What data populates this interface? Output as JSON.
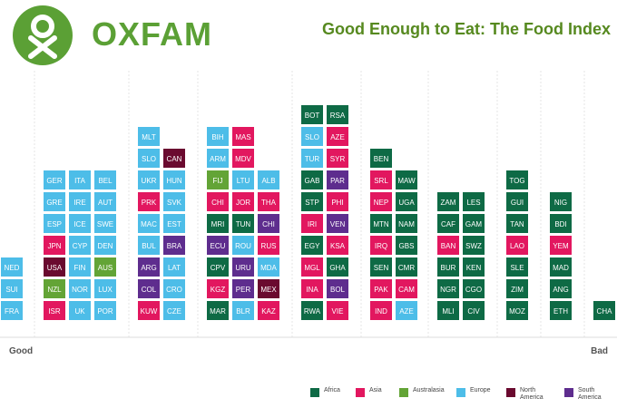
{
  "header": {
    "logo_text": "OXFAM",
    "title": "Good Enough to Eat: The Food Index"
  },
  "colors": {
    "Africa": "#0e6a45",
    "Asia": "#e2175f",
    "Australasia": "#63a436",
    "Europe": "#4dbde8",
    "North America": "#6a0a2f",
    "South America": "#5e2d8e"
  },
  "chart_data": {
    "type": "table",
    "axis_labels": {
      "left": "Good",
      "right": "Bad"
    },
    "legend": [
      "Africa",
      "Asia",
      "Australasia",
      "Europe",
      "North America",
      "South America"
    ],
    "columns": [
      [
        [
          "FRA",
          "Europe"
        ],
        [
          "SUI",
          "Europe"
        ],
        [
          "NED",
          "Europe"
        ]
      ],
      [
        [
          "ISR",
          "Asia"
        ],
        [
          "NZL",
          "Australasia"
        ],
        [
          "USA",
          "North America"
        ],
        [
          "JPN",
          "Asia"
        ],
        [
          "ESP",
          "Europe"
        ],
        [
          "GRE",
          "Europe"
        ],
        [
          "GER",
          "Europe"
        ]
      ],
      [
        [
          "UK",
          "Europe"
        ],
        [
          "NOR",
          "Europe"
        ],
        [
          "FIN",
          "Europe"
        ],
        [
          "CYP",
          "Europe"
        ],
        [
          "ICE",
          "Europe"
        ],
        [
          "IRE",
          "Europe"
        ],
        [
          "ITA",
          "Europe"
        ]
      ],
      [
        [
          "POR",
          "Europe"
        ],
        [
          "LUX",
          "Europe"
        ],
        [
          "AUS",
          "Australasia"
        ],
        [
          "DEN",
          "Europe"
        ],
        [
          "SWE",
          "Europe"
        ],
        [
          "AUT",
          "Europe"
        ],
        [
          "BEL",
          "Europe"
        ]
      ],
      [
        [
          "KUW",
          "Asia"
        ],
        [
          "COL",
          "South America"
        ],
        [
          "ARG",
          "South America"
        ],
        [
          "BUL",
          "Europe"
        ],
        [
          "MAC",
          "Europe"
        ],
        [
          "PRK",
          "Asia"
        ],
        [
          "UKR",
          "Europe"
        ],
        [
          "SLO",
          "Europe"
        ],
        [
          "MLT",
          "Europe"
        ]
      ],
      [
        [
          "CZE",
          "Europe"
        ],
        [
          "CRO",
          "Europe"
        ],
        [
          "LAT",
          "Europe"
        ],
        [
          "BRA",
          "South America"
        ],
        [
          "EST",
          "Europe"
        ],
        [
          "SVK",
          "Europe"
        ],
        [
          "HUN",
          "Europe"
        ],
        [
          "CAN",
          "North America"
        ]
      ],
      [
        [
          "MAR",
          "Africa"
        ],
        [
          "KGZ",
          "Asia"
        ],
        [
          "CPV",
          "Africa"
        ],
        [
          "ECU",
          "South America"
        ],
        [
          "MRI",
          "Africa"
        ],
        [
          "CHI",
          "Asia"
        ],
        [
          "FIJ",
          "Australasia"
        ],
        [
          "ARM",
          "Europe"
        ],
        [
          "BIH",
          "Europe"
        ]
      ],
      [
        [
          "BLR",
          "Europe"
        ],
        [
          "PER",
          "South America"
        ],
        [
          "URU",
          "South America"
        ],
        [
          "ROU",
          "Europe"
        ],
        [
          "TUN",
          "Africa"
        ],
        [
          "JOR",
          "Asia"
        ],
        [
          "LTU",
          "Europe"
        ],
        [
          "MDV",
          "Asia"
        ],
        [
          "MAS",
          "Asia"
        ]
      ],
      [
        [
          "KAZ",
          "Asia"
        ],
        [
          "MEX",
          "North America"
        ],
        [
          "MDA",
          "Europe"
        ],
        [
          "RUS",
          "Asia"
        ],
        [
          "CHI",
          "South America"
        ],
        [
          "THA",
          "Asia"
        ],
        [
          "ALB",
          "Europe"
        ]
      ],
      [
        [
          "RWA",
          "Africa"
        ],
        [
          "INA",
          "Asia"
        ],
        [
          "MGL",
          "Asia"
        ],
        [
          "EGY",
          "Africa"
        ],
        [
          "IRI",
          "Asia"
        ],
        [
          "STP",
          "Africa"
        ],
        [
          "GAB",
          "Africa"
        ],
        [
          "TUR",
          "Europe"
        ],
        [
          "SLO",
          "Europe"
        ],
        [
          "BOT",
          "Africa"
        ]
      ],
      [
        [
          "VIE",
          "Asia"
        ],
        [
          "BOL",
          "South America"
        ],
        [
          "GHA",
          "Africa"
        ],
        [
          "KSA",
          "Asia"
        ],
        [
          "VEN",
          "South America"
        ],
        [
          "PHI",
          "Asia"
        ],
        [
          "PAR",
          "South America"
        ],
        [
          "SYR",
          "Asia"
        ],
        [
          "AZE",
          "Asia"
        ],
        [
          "RSA",
          "Africa"
        ]
      ],
      [
        [
          "IND",
          "Asia"
        ],
        [
          "PAK",
          "Asia"
        ],
        [
          "SEN",
          "Africa"
        ],
        [
          "IRQ",
          "Asia"
        ],
        [
          "MTN",
          "Africa"
        ],
        [
          "NEP",
          "Asia"
        ],
        [
          "SRL",
          "Asia"
        ],
        [
          "BEN",
          "Africa"
        ]
      ],
      [
        [
          "AZE",
          "Europe"
        ],
        [
          "CAM",
          "Asia"
        ],
        [
          "CMR",
          "Africa"
        ],
        [
          "GBS",
          "Africa"
        ],
        [
          "NAM",
          "Africa"
        ],
        [
          "UGA",
          "Africa"
        ],
        [
          "MAW",
          "Africa"
        ]
      ],
      [
        [
          "MLI",
          "Africa"
        ],
        [
          "NGR",
          "Africa"
        ],
        [
          "BUR",
          "Africa"
        ],
        [
          "BAN",
          "Asia"
        ],
        [
          "CAF",
          "Africa"
        ],
        [
          "ZAM",
          "Africa"
        ]
      ],
      [
        [
          "CIV",
          "Africa"
        ],
        [
          "CGO",
          "Africa"
        ],
        [
          "KEN",
          "Africa"
        ],
        [
          "SWZ",
          "Africa"
        ],
        [
          "GAM",
          "Africa"
        ],
        [
          "LES",
          "Africa"
        ]
      ],
      [
        [
          "MOZ",
          "Africa"
        ],
        [
          "ZIM",
          "Africa"
        ],
        [
          "SLE",
          "Africa"
        ],
        [
          "LAO",
          "Asia"
        ],
        [
          "TAN",
          "Africa"
        ],
        [
          "GUI",
          "Africa"
        ],
        [
          "TOG",
          "Africa"
        ]
      ],
      [
        [
          "ETH",
          "Africa"
        ],
        [
          "ANG",
          "Africa"
        ],
        [
          "MAD",
          "Africa"
        ],
        [
          "YEM",
          "Asia"
        ],
        [
          "BDI",
          "Africa"
        ],
        [
          "NIG",
          "Africa"
        ]
      ],
      [
        [
          "CHA",
          "Africa"
        ]
      ]
    ]
  }
}
